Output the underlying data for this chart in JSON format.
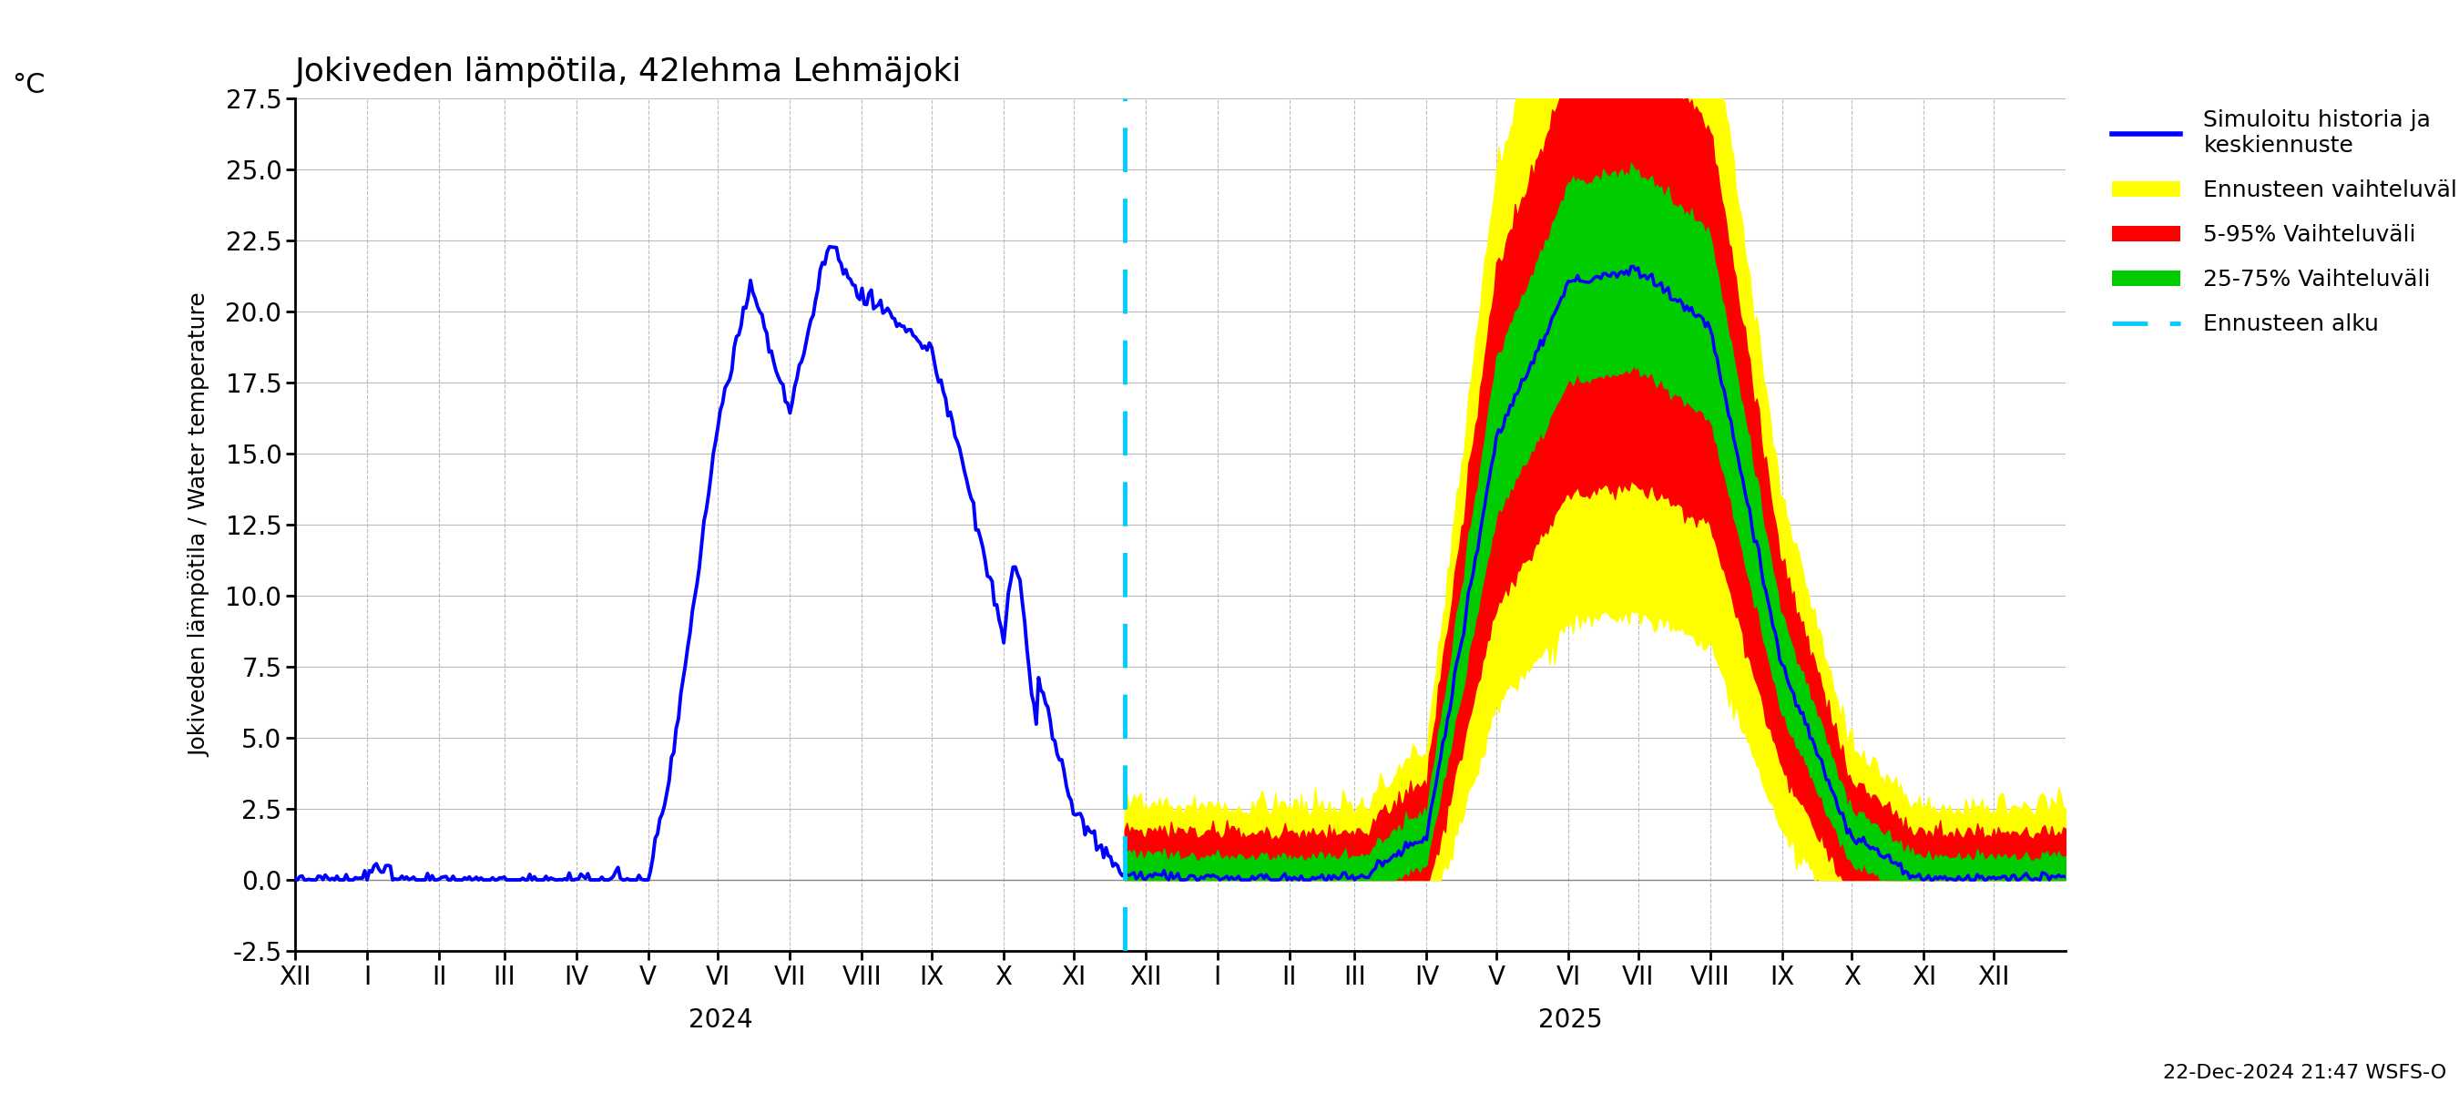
{
  "title": "Jokiveden lämpötila, 42lehma Lehmäjoki",
  "ylabel": "Jokiveden lämpötila / Water temperature",
  "ylabel_unit": "°C",
  "ylim": [
    -2.5,
    27.5
  ],
  "yticks": [
    -2.5,
    0.0,
    2.5,
    5.0,
    7.5,
    10.0,
    12.5,
    15.0,
    17.5,
    20.0,
    22.5,
    25.0,
    27.5
  ],
  "ytick_labels": [
    "-2.5",
    "0.0",
    "2.5",
    "5.0",
    "7.5",
    "10.0",
    "12.5",
    "15.0",
    "17.5",
    "20.0",
    "22.5",
    "25.0",
    "27.5"
  ],
  "background_color": "#ffffff",
  "grid_color": "#aaaaaa",
  "footnote": "22-Dec-2024 21:47 WSFS-O",
  "hist_color": "#0000ff",
  "forecast_color": "#0000ff",
  "yellow_color": "#ffff00",
  "red_color": "#ff0000",
  "green_color": "#00cc00",
  "cyan_color": "#00ccff",
  "month_ticks": [
    0,
    31,
    62,
    90,
    121,
    152,
    182,
    213,
    244,
    274,
    305,
    335,
    366,
    397,
    428,
    456,
    487,
    517,
    548,
    578,
    609,
    640,
    670,
    701,
    731,
    762
  ],
  "month_labels": [
    "XII",
    "I",
    "II",
    "III",
    "IV",
    "V",
    "VI",
    "VII",
    "VIII",
    "IX",
    "X",
    "XI",
    "XII",
    "I",
    "II",
    "III",
    "IV",
    "V",
    "VI",
    "VII",
    "VIII",
    "IX",
    "X",
    "XI",
    "XII"
  ],
  "year_2024_x": 183,
  "year_2025_x": 549,
  "forecast_start_day": 357,
  "xlim": [
    0,
    762
  ]
}
